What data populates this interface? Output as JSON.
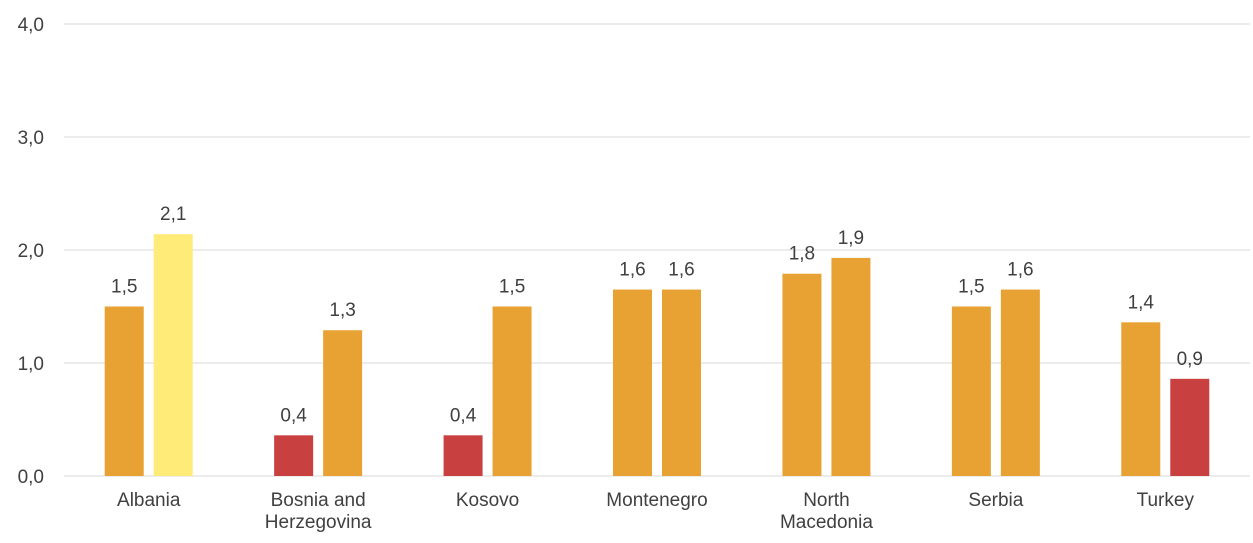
{
  "chart_data": {
    "type": "bar",
    "categories": [
      "Albania",
      "Bosnia and Herzegovina",
      "Kosovo",
      "Montenegro",
      "North Macedonia",
      "Serbia",
      "Turkey"
    ],
    "category_lines": [
      [
        "Albania"
      ],
      [
        "Bosnia and",
        "Herzegovina"
      ],
      [
        "Kosovo"
      ],
      [
        "Montenegro"
      ],
      [
        "North",
        "Macedonia"
      ],
      [
        "Serbia"
      ],
      [
        "Turkey"
      ]
    ],
    "series": [
      {
        "values": [
          1.5,
          0.36,
          0.36,
          1.65,
          1.79,
          1.5,
          1.36
        ],
        "labels": [
          "1,5",
          "0,4",
          "0,4",
          "1,6",
          "1,8",
          "1,5",
          "1,4"
        ],
        "colors": [
          "#E8A233",
          "#C84040",
          "#C84040",
          "#E8A233",
          "#E8A233",
          "#E8A233",
          "#E8A233"
        ]
      },
      {
        "values": [
          2.14,
          1.29,
          1.5,
          1.65,
          1.93,
          1.65,
          0.86
        ],
        "labels": [
          "2,1",
          "1,3",
          "1,5",
          "1,6",
          "1,9",
          "1,6",
          "0,9"
        ],
        "colors": [
          "#FFEB78",
          "#E8A233",
          "#E8A233",
          "#E8A233",
          "#E8A233",
          "#E8A233",
          "#C84040"
        ]
      }
    ],
    "yticks": [
      0,
      1,
      2,
      3,
      4
    ],
    "ytick_labels": [
      "0,0",
      "1,0",
      "2,0",
      "3,0",
      "4,0"
    ],
    "ylim": [
      0,
      4
    ],
    "grid": true,
    "title": "",
    "xlabel": "",
    "ylabel": ""
  }
}
